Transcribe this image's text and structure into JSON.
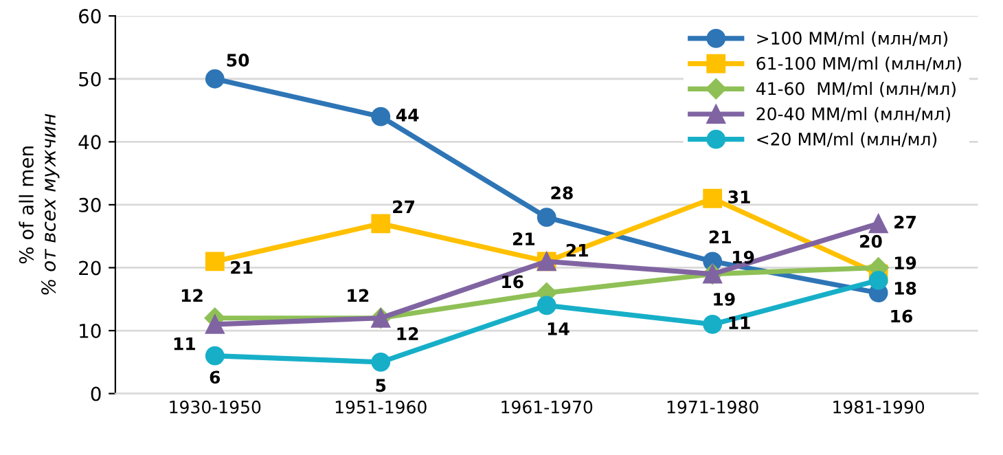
{
  "chart_data": {
    "type": "line",
    "ylabel": "% of all men\n% от всех мужчин",
    "categories": [
      "1930-1950",
      "1951-1960",
      "1961-1970",
      "1971-1980",
      "1981-1990"
    ],
    "series": [
      {
        "name": ">100 MM/ml (млн/мл)",
        "color": "#2e75b6",
        "marker": "circle",
        "values": [
          50,
          44,
          28,
          21,
          16
        ]
      },
      {
        "name": "61-100 MM/ml (млн/мл)",
        "color": "#ffc000",
        "marker": "square",
        "values": [
          21,
          27,
          21,
          31,
          19
        ]
      },
      {
        "name": "41-60  MM/ml (млн/мл)",
        "color": "#8fc056",
        "marker": "diamond",
        "values": [
          12,
          12,
          16,
          19,
          20
        ]
      },
      {
        "name": "20-40 MM/ml (млн/мл)",
        "color": "#8064a2",
        "marker": "triangle",
        "values": [
          11,
          12,
          21,
          19,
          27
        ]
      },
      {
        "name": "<20 MM/ml (млн/мл)",
        "color": "#17afc8",
        "marker": "circle",
        "values": [
          6,
          5,
          14,
          11,
          18
        ]
      }
    ],
    "ylim": [
      0,
      60
    ],
    "yticks": [
      0,
      10,
      20,
      30,
      40,
      50,
      60
    ],
    "grid": "y",
    "legend": "top right",
    "data_labels": true,
    "line_style": "solid"
  }
}
